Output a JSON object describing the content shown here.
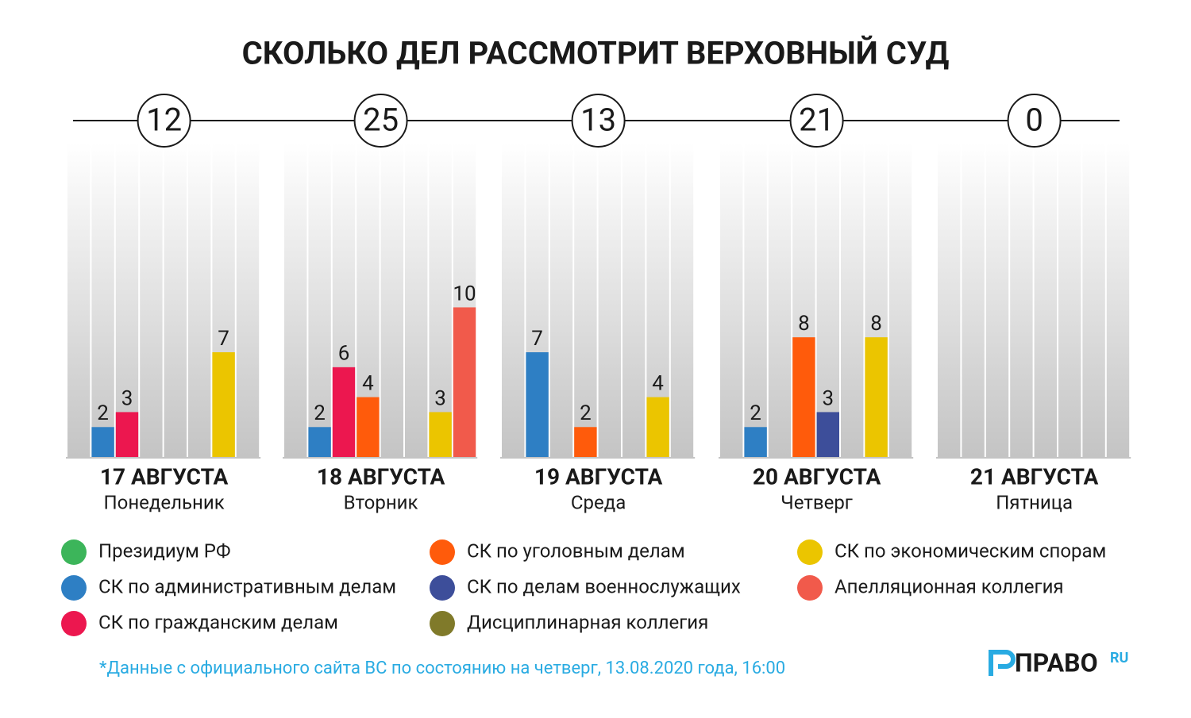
{
  "chart_data": {
    "type": "grouped-bar",
    "title": "СКОЛЬКО ДЕЛ РАССМОТРИТ ВЕРХОВНЫЙ СУД",
    "categories": [
      "17 АВГУСТА",
      "18 АВГУСТА",
      "19 АВГУСТА",
      "20 АВГУСТА",
      "21 АВГУСТА"
    ],
    "weekdays": [
      "Понедельник",
      "Вторник",
      "Среда",
      "Четверг",
      "Пятница"
    ],
    "totals": [
      12,
      25,
      13,
      21,
      0
    ],
    "ylim": [
      0,
      21
    ],
    "series": [
      {
        "name": "Президиум РФ",
        "color": "#3cb55a",
        "values": [
          null,
          null,
          null,
          null,
          null
        ]
      },
      {
        "name": "СК по административным делам",
        "color": "#2e7fc4",
        "values": [
          2,
          2,
          7,
          2,
          null
        ]
      },
      {
        "name": "СК по гражданским делам",
        "color": "#ec174f",
        "values": [
          3,
          6,
          null,
          null,
          null
        ]
      },
      {
        "name": "СК по уголовным делам",
        "color": "#ff5b0b",
        "values": [
          null,
          4,
          2,
          8,
          null
        ]
      },
      {
        "name": "СК по делам военнослужащих",
        "color": "#3d4e9a",
        "values": [
          null,
          null,
          null,
          3,
          null
        ]
      },
      {
        "name": "Дисциплинарная коллегия",
        "color": "#807a2a",
        "values": [
          null,
          null,
          null,
          null,
          null
        ]
      },
      {
        "name": "СК по экономическим спорам",
        "color": "#ebc500",
        "values": [
          7,
          3,
          4,
          8,
          null
        ]
      },
      {
        "name": "Апелляционная коллегия",
        "color": "#f15a4b",
        "values": [
          null,
          10,
          null,
          null,
          null
        ]
      }
    ]
  },
  "footnote": "*Данные с официального сайта ВС по состоянию на четверг, 13.08.2020 года, 16:00",
  "logo": {
    "name": "ПРАВО",
    "suffix": "RU"
  }
}
